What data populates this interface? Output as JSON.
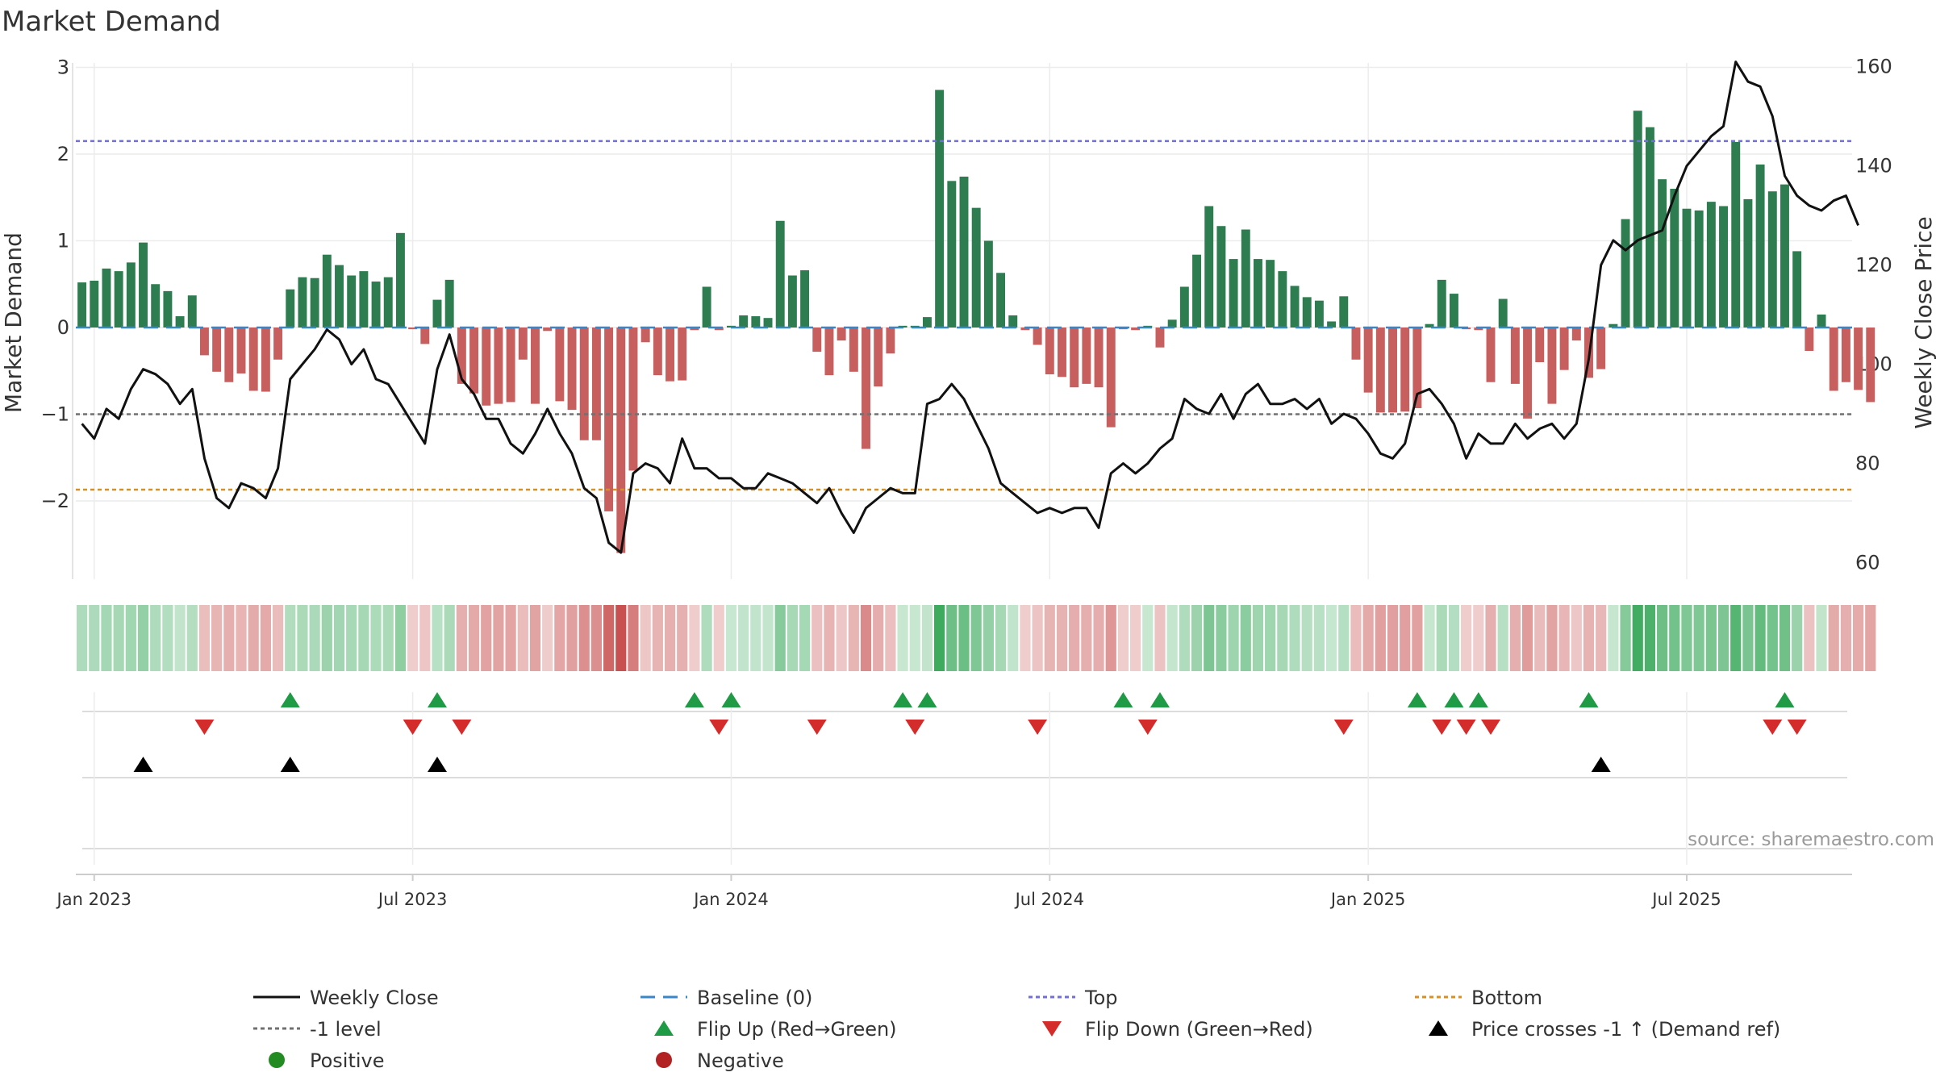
{
  "chart_data": {
    "type": "bar+line",
    "title": "Market Demand",
    "ylabel_left": "Market Demand",
    "ylabel_right": "Weekly Close Price",
    "left_yticks": [
      "3",
      "2",
      "1",
      "0",
      "−1",
      "−2"
    ],
    "left_ylim": [
      -3.0,
      3.0
    ],
    "right_yticks": [
      "160",
      "140",
      "120",
      "100",
      "80",
      "60"
    ],
    "right_ylim": [
      56,
      165
    ],
    "x_ticks": [
      "Jan 2023",
      "Jul 2023",
      "Jan 2024",
      "Jul 2024",
      "Jan 2025",
      "Jul 2025"
    ],
    "x_tick_weeks": [
      1.5,
      27.5,
      53.5,
      79.5,
      105.5,
      131.5
    ],
    "reference_lines": {
      "top": 2.15,
      "bottom": -1.87,
      "minus_one": -1.0,
      "baseline": 0
    },
    "weeks": 145,
    "demand": [
      0.52,
      0.54,
      0.68,
      0.65,
      0.75,
      0.98,
      0.5,
      0.42,
      0.13,
      0.37,
      -0.32,
      -0.51,
      -0.63,
      -0.53,
      -0.73,
      -0.74,
      -0.37,
      0.44,
      0.58,
      0.57,
      0.84,
      0.72,
      0.6,
      0.65,
      0.53,
      0.58,
      1.09,
      -0.02,
      -0.19,
      0.32,
      0.55,
      -0.65,
      -0.76,
      -0.9,
      -0.88,
      -0.86,
      -0.37,
      -0.88,
      -0.04,
      -0.85,
      -0.95,
      -1.3,
      -1.3,
      -2.12,
      -2.6,
      -1.65,
      -0.17,
      -0.55,
      -0.62,
      -0.61,
      -0.03,
      0.47,
      -0.03,
      0.02,
      0.14,
      0.13,
      0.11,
      1.23,
      0.6,
      0.66,
      -0.28,
      -0.55,
      -0.15,
      -0.51,
      -1.4,
      -0.68,
      -0.3,
      0.02,
      0.02,
      0.12,
      2.74,
      1.69,
      1.74,
      1.38,
      1.0,
      0.63,
      0.14,
      -0.03,
      -0.2,
      -0.54,
      -0.57,
      -0.69,
      -0.65,
      -0.69,
      -1.15,
      -0.02,
      -0.03,
      0.02,
      -0.23,
      0.09,
      0.47,
      0.84,
      1.4,
      1.17,
      0.79,
      1.13,
      0.79,
      0.78,
      0.65,
      0.48,
      0.35,
      0.31,
      0.07,
      0.36,
      -0.37,
      -0.75,
      -0.98,
      -0.98,
      -0.97,
      -0.93,
      0.04,
      0.55,
      0.39,
      -0.02,
      -0.03,
      -0.63,
      0.33,
      -0.65,
      -1.05,
      -0.4,
      -0.88,
      -0.49,
      -0.15,
      -0.58,
      -0.48,
      0.04,
      1.25,
      2.5,
      2.31,
      1.71,
      1.6,
      1.37,
      1.35,
      1.45,
      1.4,
      2.14,
      1.48,
      1.88,
      1.57,
      1.65,
      0.88,
      -0.27,
      0.15,
      -0.73,
      -0.63,
      -0.72,
      -0.86
    ],
    "price": [
      88,
      85,
      91,
      89,
      95,
      99,
      98,
      96,
      92,
      95,
      81,
      73,
      71,
      76,
      75,
      73,
      79,
      97,
      100,
      103,
      107,
      105,
      100,
      103,
      97,
      96,
      92,
      88,
      84,
      99,
      106,
      97,
      94,
      89,
      89,
      84,
      82,
      86,
      91,
      86,
      82,
      75,
      73,
      64,
      62,
      78,
      80,
      79,
      76,
      85,
      79,
      79,
      77,
      77,
      75,
      75,
      78,
      77,
      76,
      74,
      72,
      75,
      70,
      66,
      71,
      73,
      75,
      74,
      74,
      92,
      93,
      96,
      93,
      88,
      83,
      76,
      74,
      72,
      70,
      71,
      70,
      71,
      71,
      67,
      78,
      80,
      78,
      80,
      83,
      85,
      93,
      91,
      90,
      94,
      89,
      94,
      96,
      92,
      92,
      93,
      91,
      93,
      88,
      90,
      89,
      86,
      82,
      81,
      84,
      94,
      95,
      92,
      88,
      81,
      86,
      84,
      84,
      88,
      85,
      87,
      88,
      85,
      88,
      101,
      120,
      125,
      123,
      125,
      126,
      127,
      134,
      140,
      143,
      146,
      148,
      161,
      157,
      156,
      150,
      138,
      134,
      132,
      131,
      133,
      134,
      128
    ],
    "flips_up_weeks": [
      17,
      29,
      50,
      53,
      67,
      69,
      85,
      88,
      109,
      112,
      114,
      123,
      139
    ],
    "flips_down_weeks": [
      10,
      27,
      31,
      52,
      60,
      68,
      78,
      87,
      103,
      111,
      113,
      115,
      138,
      140
    ],
    "price_cross_weeks": [
      5,
      17,
      29,
      124
    ],
    "legend": [
      {
        "label": "Weekly Close",
        "kind": "line"
      },
      {
        "label": "Baseline (0)",
        "kind": "dashed"
      },
      {
        "label": "Top",
        "kind": "dotted"
      },
      {
        "label": "Bottom",
        "kind": "dotted"
      },
      {
        "label": "-1 level",
        "kind": "dotted"
      },
      {
        "label": "Flip Up (Red→Green)",
        "kind": "triangle-up"
      },
      {
        "label": "Flip Down (Green→Red)",
        "kind": "triangle-down"
      },
      {
        "label": "Price crosses -1 ↑ (Demand ref)",
        "kind": "triangle-up"
      },
      {
        "label": "Positive",
        "kind": "dot"
      },
      {
        "label": "Negative",
        "kind": "dot"
      }
    ],
    "source": "source: sharemaestro.com"
  },
  "colors": {
    "positive": "#2e7d51",
    "negative": "#c85f5f",
    "price_line": "#111111",
    "baseline": "#3a86c8",
    "top": "#7070d8",
    "bottom": "#d89020",
    "minus_one": "#707070",
    "flip_up": "#1f9a45",
    "flip_down": "#d42b2b",
    "cross": "#000000",
    "legend_positive": "#228b22",
    "legend_negative": "#b22222"
  }
}
